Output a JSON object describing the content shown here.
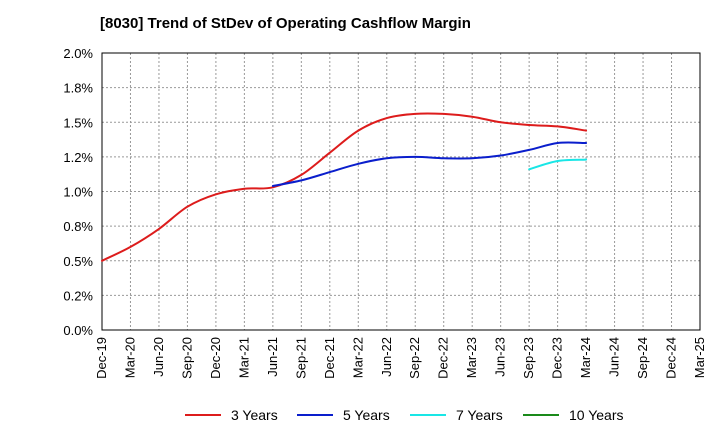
{
  "chart_data": {
    "type": "line",
    "title": "[8030]  Trend of StDev of Operating Cashflow Margin",
    "xlabel": "",
    "ylabel": "",
    "x_ticks": [
      "Dec-19",
      "Mar-20",
      "Jun-20",
      "Sep-20",
      "Dec-20",
      "Mar-21",
      "Jun-21",
      "Sep-21",
      "Dec-21",
      "Mar-22",
      "Jun-22",
      "Sep-22",
      "Dec-22",
      "Mar-23",
      "Jun-23",
      "Sep-23",
      "Dec-23",
      "Mar-24",
      "Jun-24",
      "Sep-24",
      "Dec-24",
      "Mar-25"
    ],
    "y_ticks": [
      "0.0%",
      "0.2%",
      "0.5%",
      "0.8%",
      "1.0%",
      "1.2%",
      "1.5%",
      "1.8%",
      "2.0%"
    ],
    "ylim": [
      0,
      2.0
    ],
    "grid": true,
    "legend_position": "bottom",
    "series": [
      {
        "name": "3 Years",
        "color": "#dd1c1c",
        "points": [
          [
            "Dec-19",
            0.5
          ],
          [
            "Mar-20",
            0.6
          ],
          [
            "Jun-20",
            0.73
          ],
          [
            "Sep-20",
            0.89
          ],
          [
            "Dec-20",
            0.98
          ],
          [
            "Mar-21",
            1.02
          ],
          [
            "Jun-21",
            1.03
          ],
          [
            "Sep-21",
            1.12
          ],
          [
            "Dec-21",
            1.28
          ],
          [
            "Mar-22",
            1.44
          ],
          [
            "Jun-22",
            1.53
          ],
          [
            "Sep-22",
            1.56
          ],
          [
            "Dec-22",
            1.56
          ],
          [
            "Mar-23",
            1.54
          ],
          [
            "Jun-23",
            1.5
          ],
          [
            "Sep-23",
            1.48
          ],
          [
            "Dec-23",
            1.47
          ],
          [
            "Mar-24",
            1.44
          ]
        ]
      },
      {
        "name": "5 Years",
        "color": "#0a1ecc",
        "points": [
          [
            "Jun-21",
            1.04
          ],
          [
            "Sep-21",
            1.08
          ],
          [
            "Dec-21",
            1.14
          ],
          [
            "Mar-22",
            1.2
          ],
          [
            "Jun-22",
            1.24
          ],
          [
            "Sep-22",
            1.25
          ],
          [
            "Dec-22",
            1.24
          ],
          [
            "Mar-23",
            1.24
          ],
          [
            "Jun-23",
            1.26
          ],
          [
            "Sep-23",
            1.3
          ],
          [
            "Dec-23",
            1.35
          ],
          [
            "Mar-24",
            1.35
          ]
        ]
      },
      {
        "name": "7 Years",
        "color": "#19e6e6",
        "points": [
          [
            "Sep-23",
            1.16
          ],
          [
            "Dec-23",
            1.22
          ],
          [
            "Mar-24",
            1.23
          ]
        ]
      },
      {
        "name": "10 Years",
        "color": "#1a8a1a",
        "points": []
      }
    ]
  }
}
